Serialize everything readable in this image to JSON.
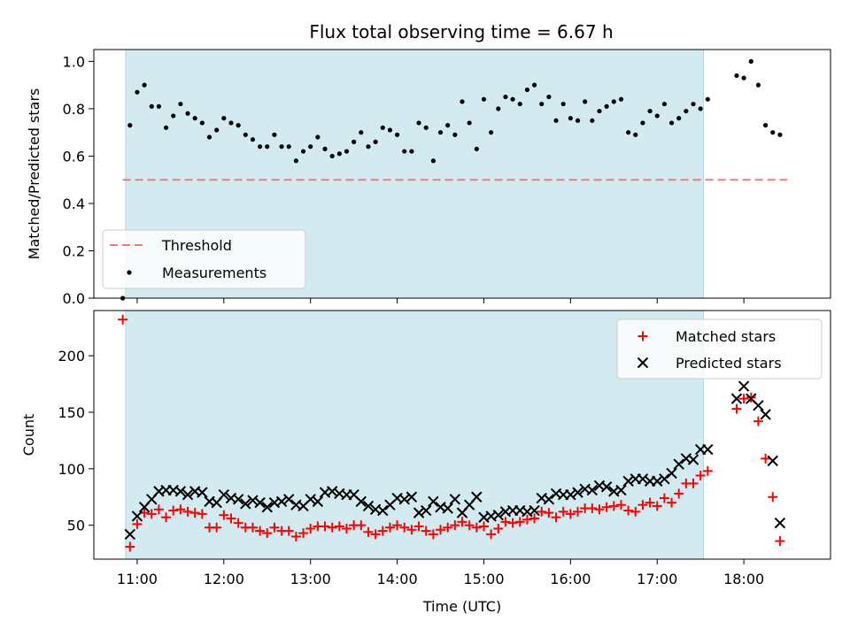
{
  "title": "Flux total observing time = 6.67 h",
  "colors": {
    "observing_window": "#d4eaf1",
    "threshold": "#f07a78",
    "measurements": "#000000",
    "matched": "#ff0000",
    "predicted": "#000000"
  },
  "chart_data": [
    {
      "type": "scatter",
      "panel": "top",
      "ylabel": "Matched/Predicted stars",
      "ylim": [
        0,
        1.05
      ],
      "yticks": [
        0.0,
        0.2,
        0.4,
        0.6,
        0.8,
        1.0
      ],
      "ytick_labels": [
        "0.0",
        "0.2",
        "0.4",
        "0.6",
        "0.8",
        "1.0"
      ],
      "legend": {
        "placement": "lower-left",
        "entries": [
          "Threshold",
          "Measurements"
        ]
      },
      "threshold": {
        "name": "Threshold",
        "value": 0.5,
        "x_start": "10:50",
        "x_end": "18:30"
      },
      "measurements": [
        [
          "10:50",
          0.0
        ],
        [
          "10:55",
          0.73
        ],
        [
          "11:00",
          0.87
        ],
        [
          "11:05",
          0.9
        ],
        [
          "11:10",
          0.81
        ],
        [
          "11:15",
          0.81
        ],
        [
          "11:20",
          0.72
        ],
        [
          "11:25",
          0.77
        ],
        [
          "11:30",
          0.82
        ],
        [
          "11:35",
          0.78
        ],
        [
          "11:40",
          0.76
        ],
        [
          "11:45",
          0.74
        ],
        [
          "11:50",
          0.68
        ],
        [
          "11:55",
          0.71
        ],
        [
          "12:00",
          0.76
        ],
        [
          "12:05",
          0.74
        ],
        [
          "12:10",
          0.73
        ],
        [
          "12:15",
          0.69
        ],
        [
          "12:20",
          0.67
        ],
        [
          "12:25",
          0.64
        ],
        [
          "12:30",
          0.64
        ],
        [
          "12:35",
          0.69
        ],
        [
          "12:40",
          0.64
        ],
        [
          "12:45",
          0.64
        ],
        [
          "12:50",
          0.58
        ],
        [
          "12:55",
          0.62
        ],
        [
          "13:00",
          0.64
        ],
        [
          "13:05",
          0.68
        ],
        [
          "13:10",
          0.63
        ],
        [
          "13:15",
          0.6
        ],
        [
          "13:20",
          0.61
        ],
        [
          "13:25",
          0.62
        ],
        [
          "13:30",
          0.66
        ],
        [
          "13:35",
          0.7
        ],
        [
          "13:40",
          0.64
        ],
        [
          "13:45",
          0.66
        ],
        [
          "13:50",
          0.72
        ],
        [
          "13:55",
          0.71
        ],
        [
          "14:00",
          0.69
        ],
        [
          "14:05",
          0.62
        ],
        [
          "14:10",
          0.62
        ],
        [
          "14:15",
          0.74
        ],
        [
          "14:20",
          0.72
        ],
        [
          "14:25",
          0.58
        ],
        [
          "14:30",
          0.7
        ],
        [
          "14:35",
          0.73
        ],
        [
          "14:40",
          0.69
        ],
        [
          "14:45",
          0.83
        ],
        [
          "14:50",
          0.74
        ],
        [
          "14:55",
          0.63
        ],
        [
          "15:00",
          0.84
        ],
        [
          "15:05",
          0.7
        ],
        [
          "15:10",
          0.8
        ],
        [
          "15:15",
          0.85
        ],
        [
          "15:20",
          0.84
        ],
        [
          "15:25",
          0.82
        ],
        [
          "15:30",
          0.88
        ],
        [
          "15:35",
          0.9
        ],
        [
          "15:40",
          0.82
        ],
        [
          "15:45",
          0.85
        ],
        [
          "15:50",
          0.75
        ],
        [
          "15:55",
          0.82
        ],
        [
          "16:00",
          0.76
        ],
        [
          "16:05",
          0.75
        ],
        [
          "16:10",
          0.83
        ],
        [
          "16:15",
          0.75
        ],
        [
          "16:20",
          0.79
        ],
        [
          "16:25",
          0.81
        ],
        [
          "16:30",
          0.83
        ],
        [
          "16:35",
          0.84
        ],
        [
          "16:40",
          0.7
        ],
        [
          "16:45",
          0.69
        ],
        [
          "16:50",
          0.74
        ],
        [
          "16:55",
          0.79
        ],
        [
          "17:00",
          0.77
        ],
        [
          "17:05",
          0.82
        ],
        [
          "17:10",
          0.74
        ],
        [
          "17:15",
          0.76
        ],
        [
          "17:20",
          0.79
        ],
        [
          "17:25",
          0.82
        ],
        [
          "17:30",
          0.8
        ],
        [
          "17:35",
          0.84
        ],
        [
          "17:55",
          0.94
        ],
        [
          "18:00",
          0.93
        ],
        [
          "18:05",
          1.0
        ],
        [
          "18:10",
          0.9
        ],
        [
          "18:15",
          0.73
        ],
        [
          "18:20",
          0.7
        ],
        [
          "18:25",
          0.69
        ]
      ]
    },
    {
      "type": "scatter",
      "panel": "bottom",
      "xlabel": "Time (UTC)",
      "ylabel": "Count",
      "xlim": [
        "10:30",
        "19:00"
      ],
      "xticks": [
        "11:00",
        "12:00",
        "13:00",
        "14:00",
        "15:00",
        "16:00",
        "17:00",
        "18:00"
      ],
      "ylim": [
        20,
        240
      ],
      "yticks": [
        50,
        100,
        150,
        200
      ],
      "ytick_labels": [
        "50",
        "100",
        "150",
        "200"
      ],
      "observing_window": [
        "10:52",
        "17:32"
      ],
      "legend": {
        "placement": "top-right",
        "entries": [
          "Matched stars",
          "Predicted stars"
        ]
      },
      "series": [
        {
          "name": "Matched stars",
          "marker": "+",
          "points": [
            [
              "10:50",
              232
            ],
            [
              "10:55",
              31
            ],
            [
              "11:00",
              51
            ],
            [
              "11:05",
              61
            ],
            [
              "11:10",
              60
            ],
            [
              "11:15",
              64
            ],
            [
              "11:20",
              57
            ],
            [
              "11:25",
              63
            ],
            [
              "11:30",
              64
            ],
            [
              "11:35",
              62
            ],
            [
              "11:40",
              61
            ],
            [
              "11:45",
              60
            ],
            [
              "11:50",
              48
            ],
            [
              "11:55",
              48
            ],
            [
              "12:00",
              59
            ],
            [
              "12:05",
              56
            ],
            [
              "12:10",
              52
            ],
            [
              "12:15",
              48
            ],
            [
              "12:20",
              48
            ],
            [
              "12:25",
              45
            ],
            [
              "12:30",
              43
            ],
            [
              "12:35",
              48
            ],
            [
              "12:40",
              45
            ],
            [
              "12:45",
              45
            ],
            [
              "12:50",
              40
            ],
            [
              "12:55",
              43
            ],
            [
              "13:00",
              47
            ],
            [
              "13:05",
              49
            ],
            [
              "13:10",
              49
            ],
            [
              "13:15",
              48
            ],
            [
              "13:20",
              49
            ],
            [
              "13:25",
              47
            ],
            [
              "13:30",
              50
            ],
            [
              "13:35",
              50
            ],
            [
              "13:40",
              44
            ],
            [
              "13:45",
              42
            ],
            [
              "13:50",
              45
            ],
            [
              "13:55",
              48
            ],
            [
              "14:00",
              50
            ],
            [
              "14:05",
              48
            ],
            [
              "14:10",
              46
            ],
            [
              "14:15",
              49
            ],
            [
              "14:20",
              45
            ],
            [
              "14:25",
              42
            ],
            [
              "14:30",
              46
            ],
            [
              "14:35",
              48
            ],
            [
              "14:40",
              50
            ],
            [
              "14:45",
              53
            ],
            [
              "14:50",
              50
            ],
            [
              "14:55",
              48
            ],
            [
              "15:00",
              49
            ],
            [
              "15:05",
              42
            ],
            [
              "15:10",
              47
            ],
            [
              "15:15",
              53
            ],
            [
              "15:20",
              52
            ],
            [
              "15:25",
              53
            ],
            [
              "15:30",
              55
            ],
            [
              "15:35",
              56
            ],
            [
              "15:40",
              62
            ],
            [
              "15:45",
              61
            ],
            [
              "15:50",
              57
            ],
            [
              "15:55",
              62
            ],
            [
              "16:00",
              60
            ],
            [
              "16:05",
              62
            ],
            [
              "16:10",
              65
            ],
            [
              "16:15",
              65
            ],
            [
              "16:20",
              64
            ],
            [
              "16:25",
              66
            ],
            [
              "16:30",
              67
            ],
            [
              "16:35",
              68
            ],
            [
              "16:40",
              63
            ],
            [
              "16:45",
              62
            ],
            [
              "16:50",
              68
            ],
            [
              "16:55",
              70
            ],
            [
              "17:00",
              67
            ],
            [
              "17:05",
              74
            ],
            [
              "17:10",
              70
            ],
            [
              "17:15",
              78
            ],
            [
              "17:20",
              87
            ],
            [
              "17:25",
              87
            ],
            [
              "17:30",
              94
            ],
            [
              "17:35",
              98
            ],
            [
              "17:55",
              153
            ],
            [
              "18:00",
              162
            ],
            [
              "18:05",
              163
            ],
            [
              "18:10",
              142
            ],
            [
              "18:15",
              109
            ],
            [
              "18:20",
              75
            ],
            [
              "18:25",
              36
            ]
          ]
        },
        {
          "name": "Predicted stars",
          "marker": "x",
          "points": [
            [
              "10:55",
              42
            ],
            [
              "11:00",
              58
            ],
            [
              "11:05",
              66
            ],
            [
              "11:10",
              73
            ],
            [
              "11:15",
              80
            ],
            [
              "11:20",
              81
            ],
            [
              "11:25",
              81
            ],
            [
              "11:30",
              80
            ],
            [
              "11:35",
              77
            ],
            [
              "11:40",
              80
            ],
            [
              "11:45",
              79
            ],
            [
              "11:50",
              71
            ],
            [
              "11:55",
              70
            ],
            [
              "12:00",
              77
            ],
            [
              "12:05",
              74
            ],
            [
              "12:10",
              73
            ],
            [
              "12:15",
              69
            ],
            [
              "12:20",
              72
            ],
            [
              "12:25",
              70
            ],
            [
              "12:30",
              66
            ],
            [
              "12:35",
              70
            ],
            [
              "12:40",
              71
            ],
            [
              "12:45",
              73
            ],
            [
              "12:50",
              68
            ],
            [
              "12:55",
              67
            ],
            [
              "13:00",
              73
            ],
            [
              "13:05",
              71
            ],
            [
              "13:10",
              79
            ],
            [
              "13:15",
              80
            ],
            [
              "13:20",
              78
            ],
            [
              "13:25",
              77
            ],
            [
              "13:30",
              77
            ],
            [
              "13:35",
              71
            ],
            [
              "13:40",
              67
            ],
            [
              "13:45",
              64
            ],
            [
              "13:50",
              63
            ],
            [
              "13:55",
              68
            ],
            [
              "14:00",
              74
            ],
            [
              "14:05",
              73
            ],
            [
              "14:10",
              75
            ],
            [
              "14:15",
              61
            ],
            [
              "14:20",
              63
            ],
            [
              "14:25",
              71
            ],
            [
              "14:30",
              66
            ],
            [
              "14:35",
              65
            ],
            [
              "14:40",
              73
            ],
            [
              "14:45",
              61
            ],
            [
              "14:50",
              68
            ],
            [
              "14:55",
              75
            ],
            [
              "15:00",
              57
            ],
            [
              "15:05",
              58
            ],
            [
              "15:10",
              59
            ],
            [
              "15:15",
              62
            ],
            [
              "15:20",
              63
            ],
            [
              "15:25",
              63
            ],
            [
              "15:30",
              62
            ],
            [
              "15:35",
              63
            ],
            [
              "15:40",
              74
            ],
            [
              "15:45",
              73
            ],
            [
              "15:50",
              78
            ],
            [
              "15:55",
              77
            ],
            [
              "16:00",
              77
            ],
            [
              "16:05",
              79
            ],
            [
              "16:10",
              82
            ],
            [
              "16:15",
              81
            ],
            [
              "16:20",
              85
            ],
            [
              "16:25",
              84
            ],
            [
              "16:30",
              80
            ],
            [
              "16:35",
              81
            ],
            [
              "16:40",
              89
            ],
            [
              "16:45",
              91
            ],
            [
              "16:50",
              91
            ],
            [
              "16:55",
              89
            ],
            [
              "17:00",
              89
            ],
            [
              "17:05",
              91
            ],
            [
              "17:10",
              96
            ],
            [
              "17:15",
              104
            ],
            [
              "17:20",
              109
            ],
            [
              "17:25",
              108
            ],
            [
              "17:30",
              117
            ],
            [
              "17:35",
              117
            ],
            [
              "17:55",
              162
            ],
            [
              "18:00",
              173
            ],
            [
              "18:05",
              162
            ],
            [
              "18:10",
              156
            ],
            [
              "18:15",
              148
            ],
            [
              "18:20",
              107
            ],
            [
              "18:25",
              52
            ]
          ]
        }
      ]
    }
  ]
}
